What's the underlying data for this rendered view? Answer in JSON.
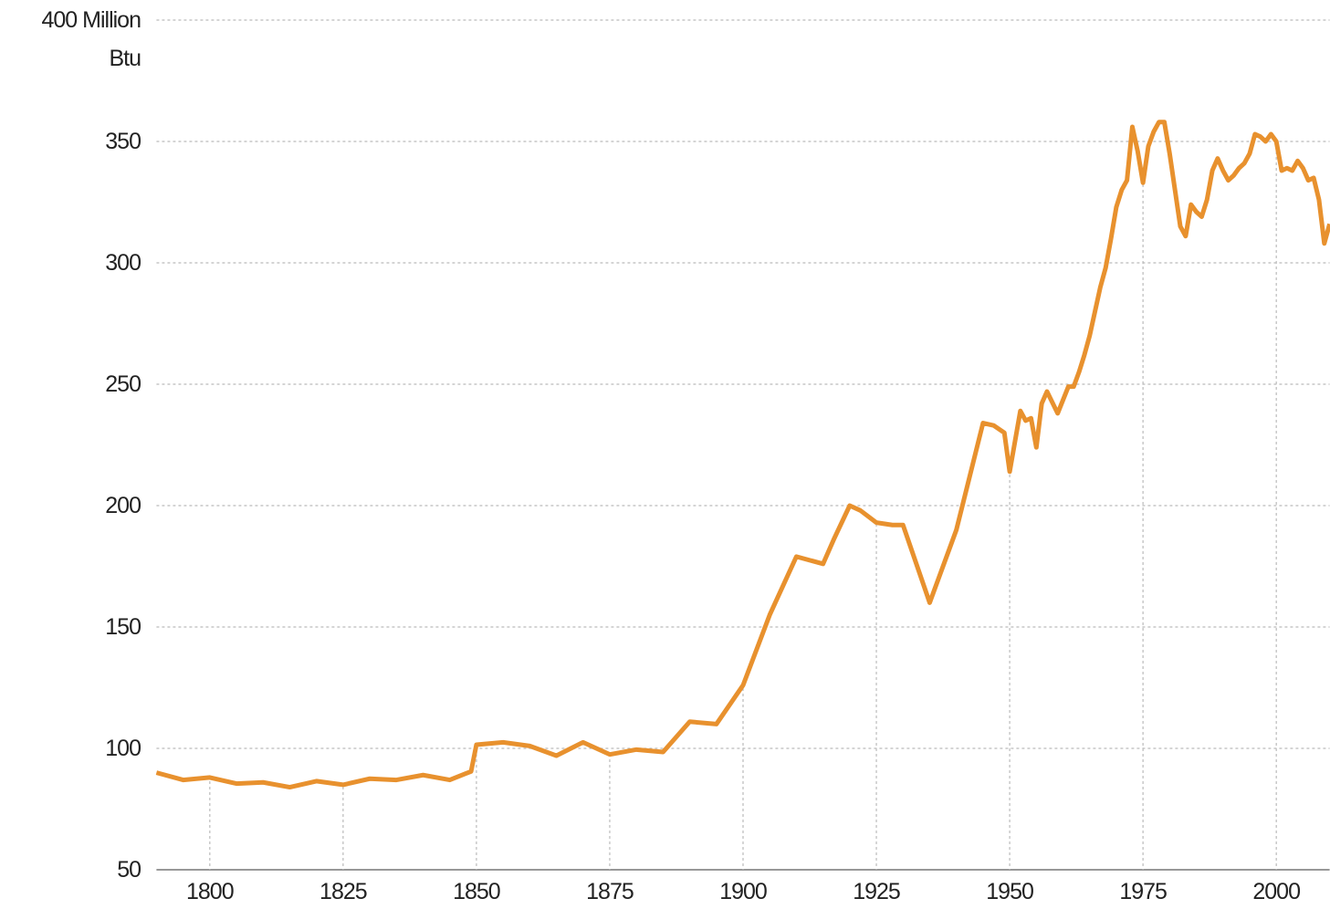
{
  "chart_data": {
    "type": "line",
    "x": [
      1790,
      1795,
      1800,
      1805,
      1810,
      1815,
      1820,
      1825,
      1830,
      1835,
      1840,
      1845,
      1849,
      1850,
      1855,
      1860,
      1865,
      1870,
      1875,
      1880,
      1885,
      1890,
      1895,
      1900,
      1905,
      1910,
      1915,
      1917,
      1920,
      1922,
      1925,
      1928,
      1930,
      1935,
      1940,
      1945,
      1947,
      1949,
      1950,
      1952,
      1953,
      1954,
      1955,
      1956,
      1957,
      1959,
      1961,
      1962,
      1963,
      1964,
      1965,
      1966,
      1967,
      1968,
      1969,
      1970,
      1971,
      1972,
      1973,
      1974,
      1975,
      1976,
      1977,
      1978,
      1979,
      1980,
      1981,
      1982,
      1983,
      1984,
      1985,
      1986,
      1987,
      1988,
      1989,
      1990,
      1991,
      1992,
      1993,
      1994,
      1995,
      1996,
      1997,
      1998,
      1999,
      2000,
      2001,
      2002,
      2003,
      2004,
      2005,
      2006,
      2007,
      2008,
      2009,
      2010
    ],
    "series": [
      {
        "color": "#e8912e",
        "values": [
          90,
          87,
          88,
          85.5,
          86,
          84,
          86.5,
          85,
          87.5,
          87,
          89,
          87,
          90.5,
          101.5,
          102.5,
          101,
          97,
          102.5,
          97.5,
          99.5,
          98.5,
          111,
          110,
          126,
          155,
          179,
          176,
          186,
          200,
          198,
          193,
          192,
          192,
          160,
          190,
          234,
          233,
          230,
          214,
          239,
          235,
          236,
          224,
          242,
          247,
          238,
          249,
          249,
          255,
          262,
          270,
          280,
          290,
          298,
          310,
          323,
          330,
          334,
          356,
          346,
          333,
          348,
          354,
          358,
          358,
          345,
          330,
          315,
          311,
          324,
          321,
          319,
          326,
          338,
          343,
          338,
          334,
          336,
          339,
          341,
          345,
          353,
          352,
          350,
          353,
          350,
          338,
          339,
          338,
          342,
          339,
          334,
          335,
          326,
          308,
          316
        ]
      }
    ],
    "xlim": [
      1790,
      2010
    ],
    "xticks": [
      1800,
      1825,
      1850,
      1875,
      1900,
      1925,
      1950,
      1975,
      2000
    ],
    "ylim": [
      50,
      400
    ],
    "yticks": [
      50,
      100,
      150,
      200,
      250,
      300,
      350,
      {
        "value": 400,
        "label": "400 Million Btu"
      }
    ],
    "grid": true
  }
}
